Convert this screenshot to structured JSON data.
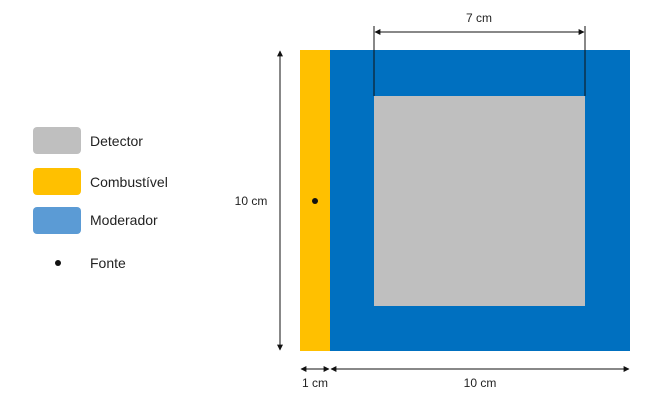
{
  "legend": {
    "items": [
      {
        "key": "detector",
        "label": "Detector",
        "color": "#bfbfbf"
      },
      {
        "key": "fuel",
        "label": "Combustível",
        "color": "#ffc000"
      },
      {
        "key": "moderator",
        "label": "Moderador",
        "color": "#5b9bd5"
      },
      {
        "key": "source",
        "label": "Fonte",
        "color": "#111111"
      }
    ]
  },
  "colors": {
    "moderator_block": "#0070c0",
    "fuel_block": "#ffc000",
    "detector_block": "#bfbfbf"
  },
  "dimensions": {
    "detector_width": "7 cm",
    "height": "10 cm",
    "fuel_width": "1 cm",
    "moderator_width": "10 cm"
  }
}
